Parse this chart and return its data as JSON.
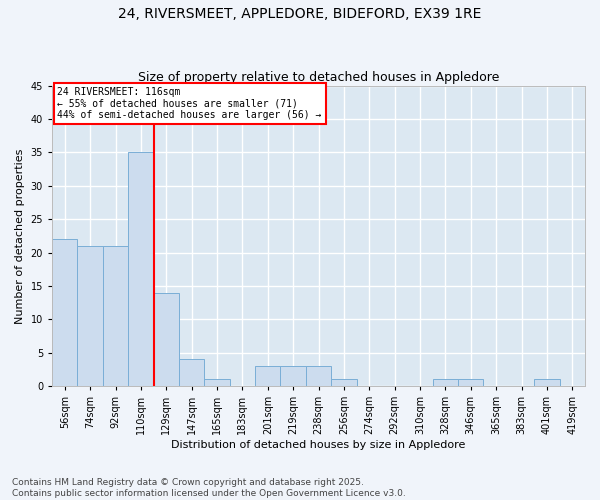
{
  "title1": "24, RIVERSMEET, APPLEDORE, BIDEFORD, EX39 1RE",
  "title2": "Size of property relative to detached houses in Appledore",
  "xlabel": "Distribution of detached houses by size in Appledore",
  "ylabel": "Number of detached properties",
  "categories": [
    "56sqm",
    "74sqm",
    "92sqm",
    "110sqm",
    "129sqm",
    "147sqm",
    "165sqm",
    "183sqm",
    "201sqm",
    "219sqm",
    "238sqm",
    "256sqm",
    "274sqm",
    "292sqm",
    "310sqm",
    "328sqm",
    "346sqm",
    "365sqm",
    "383sqm",
    "401sqm",
    "419sqm"
  ],
  "values": [
    22,
    21,
    21,
    35,
    14,
    4,
    1,
    0,
    3,
    3,
    3,
    1,
    0,
    0,
    0,
    1,
    1,
    0,
    0,
    1,
    0
  ],
  "bar_color": "#ccdcee",
  "bar_edge_color": "#7aaed6",
  "red_line_x": 3.5,
  "annotation_text": "24 RIVERSMEET: 116sqm\n← 55% of detached houses are smaller (71)\n44% of semi-detached houses are larger (56) →",
  "background_color": "#dce8f2",
  "grid_color": "#ffffff",
  "fig_bg_color": "#f0f4fa",
  "ylim": [
    0,
    45
  ],
  "yticks": [
    0,
    5,
    10,
    15,
    20,
    25,
    30,
    35,
    40,
    45
  ],
  "footer1": "Contains HM Land Registry data © Crown copyright and database right 2025.",
  "footer2": "Contains public sector information licensed under the Open Government Licence v3.0.",
  "title_fontsize": 10,
  "subtitle_fontsize": 9,
  "axis_label_fontsize": 8,
  "tick_fontsize": 7,
  "annot_fontsize": 7,
  "footer_fontsize": 6.5
}
